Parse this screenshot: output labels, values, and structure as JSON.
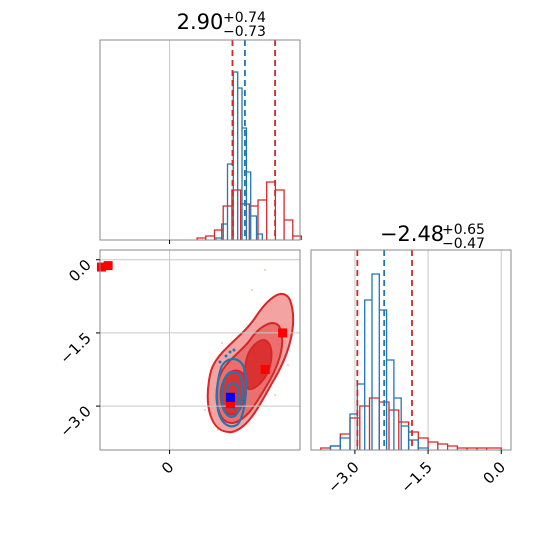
{
  "chart_data": [
    {
      "type": "histogram",
      "panel": "x-marginal",
      "title_value": "2.90",
      "title_upper": "+0.74",
      "title_lower": "−0.73",
      "xlim": [
        -2.4,
        4.5
      ],
      "x_ticks": [
        0
      ],
      "grid": true,
      "lines": {
        "red": [
          2.17,
          3.64
        ],
        "blue": [
          2.6
        ]
      },
      "series": [
        {
          "color": "#d62728",
          "bins": [
            [
              0.95,
              1.25,
              0.01
            ],
            [
              1.25,
              1.55,
              0.02
            ],
            [
              1.55,
              1.85,
              0.05
            ],
            [
              1.85,
              2.15,
              0.17
            ],
            [
              2.15,
              2.45,
              0.25
            ],
            [
              2.45,
              2.75,
              0.18
            ],
            [
              2.75,
              3.05,
              0.17
            ],
            [
              3.05,
              3.35,
              0.2
            ],
            [
              3.35,
              3.65,
              0.29
            ],
            [
              3.65,
              3.95,
              0.25
            ],
            [
              3.95,
              4.25,
              0.1
            ],
            [
              4.25,
              4.55,
              0.02
            ]
          ]
        },
        {
          "color": "#1f77b4",
          "bins": [
            [
              1.6,
              1.8,
              0.01
            ],
            [
              1.8,
              2.0,
              0.08
            ],
            [
              2.0,
              2.2,
              0.38
            ],
            [
              2.2,
              2.35,
              0.84
            ],
            [
              2.35,
              2.5,
              0.76
            ],
            [
              2.5,
              2.65,
              0.56
            ],
            [
              2.65,
              2.8,
              0.34
            ],
            [
              2.8,
              3.0,
              0.12
            ],
            [
              3.0,
              3.2,
              0.03
            ]
          ]
        }
      ]
    },
    {
      "type": "contour",
      "panel": "joint",
      "xlim": [
        -2.4,
        4.5
      ],
      "ylim": [
        -3.9,
        0.2
      ],
      "x_ticks": [
        0
      ],
      "x_tick_labels": [
        "0"
      ],
      "y_ticks": [
        0.0,
        -1.5,
        -3.0
      ],
      "y_tick_labels": [
        "0.0",
        "−1.5",
        "−3.0"
      ],
      "grid": true,
      "markers": [
        {
          "color": "#ff0000",
          "points": [
            [
              -2.35,
              -0.15
            ],
            [
              -2.12,
              -0.12
            ],
            [
              3.9,
              -1.5
            ],
            [
              3.3,
              -2.25
            ],
            [
              2.1,
              -2.95
            ]
          ]
        },
        {
          "color": "#0000ff",
          "points": [
            [
              2.1,
              -2.82
            ]
          ]
        }
      ]
    },
    {
      "type": "histogram",
      "panel": "y-marginal",
      "title_value": "−2.48",
      "title_upper": "+0.65",
      "title_lower": "−0.47",
      "xlim": [
        -3.9,
        0.2
      ],
      "x_ticks": [
        -3.0,
        -1.5,
        0.0
      ],
      "x_tick_labels": [
        "−3.0",
        "−1.5",
        "0.0"
      ],
      "grid": true,
      "lines": {
        "red": [
          -2.95,
          -1.83
        ],
        "blue": [
          -2.4
        ]
      },
      "series": [
        {
          "color": "#d62728",
          "bins": [
            [
              -3.7,
              -3.5,
              0.01
            ],
            [
              -3.5,
              -3.3,
              0.02
            ],
            [
              -3.3,
              -3.1,
              0.08
            ],
            [
              -3.1,
              -2.9,
              0.16
            ],
            [
              -2.9,
              -2.7,
              0.22
            ],
            [
              -2.7,
              -2.5,
              0.26
            ],
            [
              -2.5,
              -2.3,
              0.24
            ],
            [
              -2.3,
              -2.1,
              0.2
            ],
            [
              -2.1,
              -1.9,
              0.14
            ],
            [
              -1.9,
              -1.7,
              0.09
            ],
            [
              -1.7,
              -1.5,
              0.06
            ],
            [
              -1.5,
              -1.3,
              0.04
            ],
            [
              -1.3,
              -1.1,
              0.03
            ],
            [
              -1.1,
              -0.9,
              0.02
            ],
            [
              -0.9,
              -0.7,
              0.01
            ],
            [
              -0.7,
              -0.5,
              0.01
            ],
            [
              -0.5,
              -0.3,
              0.01
            ],
            [
              -0.3,
              0.0,
              0.01
            ]
          ]
        },
        {
          "color": "#1f77b4",
          "bins": [
            [
              -3.5,
              -3.3,
              0.02
            ],
            [
              -3.3,
              -3.1,
              0.06
            ],
            [
              -3.1,
              -2.95,
              0.18
            ],
            [
              -2.95,
              -2.8,
              0.33
            ],
            [
              -2.8,
              -2.65,
              0.75
            ],
            [
              -2.65,
              -2.5,
              0.88
            ],
            [
              -2.5,
              -2.35,
              0.7
            ],
            [
              -2.35,
              -2.2,
              0.45
            ],
            [
              -2.2,
              -2.05,
              0.26
            ],
            [
              -2.05,
              -1.9,
              0.12
            ],
            [
              -1.9,
              -1.7,
              0.05
            ],
            [
              -1.7,
              -1.5,
              0.01
            ]
          ]
        }
      ]
    }
  ]
}
